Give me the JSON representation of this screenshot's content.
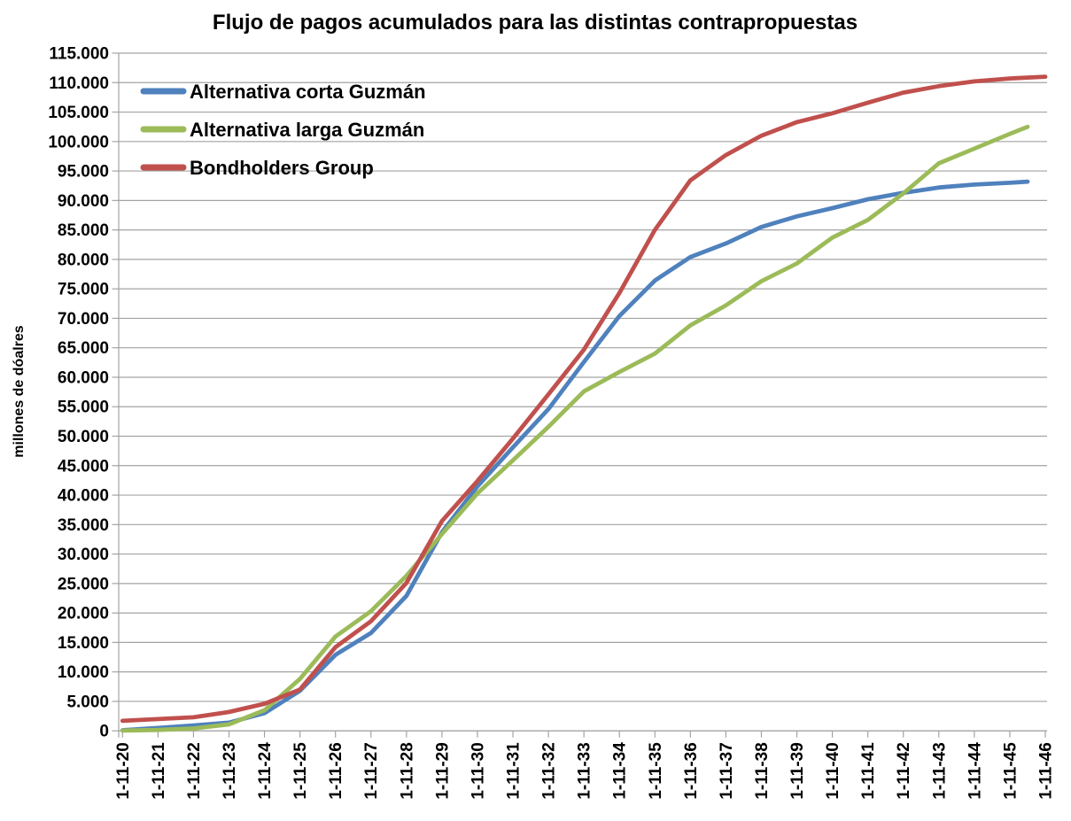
{
  "chart_data": {
    "type": "line",
    "title": "Flujo de pagos acumulados para las distintas contrapropuestas",
    "xlabel": "",
    "ylabel": "millones de dóalres",
    "ylim": [
      0,
      115000
    ],
    "y_tick_step": 5000,
    "y_tick_labels": [
      "0",
      "5.000",
      "10.000",
      "15.000",
      "20.000",
      "25.000",
      "30.000",
      "35.000",
      "40.000",
      "45.000",
      "50.000",
      "55.000",
      "60.000",
      "65.000",
      "70.000",
      "75.000",
      "80.000",
      "85.000",
      "90.000",
      "95.000",
      "100.000",
      "105.000",
      "110.000",
      "115.000"
    ],
    "x_tick_labels": [
      "1-11-20",
      "1-11-21",
      "1-11-22",
      "1-11-23",
      "1-11-24",
      "1-11-25",
      "1-11-26",
      "1-11-27",
      "1-11-28",
      "1-11-29",
      "1-11-30",
      "1-11-31",
      "1-11-32",
      "1-11-33",
      "1-11-34",
      "1-11-35",
      "1-11-36",
      "1-11-37",
      "1-11-38",
      "1-11-39",
      "1-11-40",
      "1-11-41",
      "1-11-42",
      "1-11-43",
      "1-11-44",
      "1-11-45",
      "1-11-46"
    ],
    "grid": "horizontal-only",
    "legend_position": "top-left-inside",
    "colors": {
      "grid": "#a3a3a3",
      "axis": "#a3a3a3",
      "text": "#000000",
      "background": "#ffffff"
    },
    "series": [
      {
        "name": "Alternativa corta Guzmán",
        "color": "#4f81bd",
        "points": [
          [
            20,
            100
          ],
          [
            21,
            500
          ],
          [
            22,
            900
          ],
          [
            23,
            1400
          ],
          [
            24,
            3000
          ],
          [
            25,
            6800
          ],
          [
            26,
            12900
          ],
          [
            27,
            16600
          ],
          [
            28,
            22900
          ],
          [
            29,
            33700
          ],
          [
            30,
            41500
          ],
          [
            31,
            48100
          ],
          [
            32,
            54600
          ],
          [
            33,
            62600
          ],
          [
            34,
            70400
          ],
          [
            35,
            76400
          ],
          [
            36,
            80400
          ],
          [
            37,
            82700
          ],
          [
            38,
            85500
          ],
          [
            39,
            87300
          ],
          [
            40,
            88700
          ],
          [
            41,
            90200
          ],
          [
            42,
            91300
          ],
          [
            43,
            92200
          ],
          [
            44,
            92700
          ],
          [
            45,
            93000
          ],
          [
            45.5,
            93200
          ]
        ]
      },
      {
        "name": "Alternativa larga Guzmán",
        "color": "#9bbb59",
        "points": [
          [
            20,
            50
          ],
          [
            21,
            150
          ],
          [
            22,
            400
          ],
          [
            23,
            1100
          ],
          [
            24,
            3500
          ],
          [
            25,
            8800
          ],
          [
            26,
            16000
          ],
          [
            27,
            20300
          ],
          [
            28,
            26300
          ],
          [
            29,
            33400
          ],
          [
            30,
            40300
          ],
          [
            31,
            45900
          ],
          [
            32,
            51600
          ],
          [
            33,
            57600
          ],
          [
            34,
            60900
          ],
          [
            35,
            64000
          ],
          [
            36,
            68800
          ],
          [
            37,
            72200
          ],
          [
            38,
            76300
          ],
          [
            39,
            79300
          ],
          [
            40,
            83700
          ],
          [
            41,
            86700
          ],
          [
            42,
            91200
          ],
          [
            43,
            96300
          ],
          [
            44,
            98800
          ],
          [
            45,
            101300
          ],
          [
            45.5,
            102500
          ]
        ]
      },
      {
        "name": "Bondholders Group",
        "color": "#c0504d",
        "points": [
          [
            20,
            1700
          ],
          [
            21,
            2000
          ],
          [
            22,
            2300
          ],
          [
            23,
            3200
          ],
          [
            24,
            4600
          ],
          [
            25,
            7000
          ],
          [
            26,
            14200
          ],
          [
            27,
            18600
          ],
          [
            28,
            25100
          ],
          [
            29,
            35600
          ],
          [
            30,
            42400
          ],
          [
            31,
            49600
          ],
          [
            32,
            57100
          ],
          [
            33,
            64700
          ],
          [
            34,
            74300
          ],
          [
            35,
            85000
          ],
          [
            36,
            93400
          ],
          [
            37,
            97700
          ],
          [
            38,
            101000
          ],
          [
            39,
            103300
          ],
          [
            40,
            104800
          ],
          [
            41,
            106600
          ],
          [
            42,
            108300
          ],
          [
            43,
            109400
          ],
          [
            44,
            110200
          ],
          [
            45,
            110700
          ],
          [
            46,
            111000
          ]
        ]
      }
    ]
  }
}
